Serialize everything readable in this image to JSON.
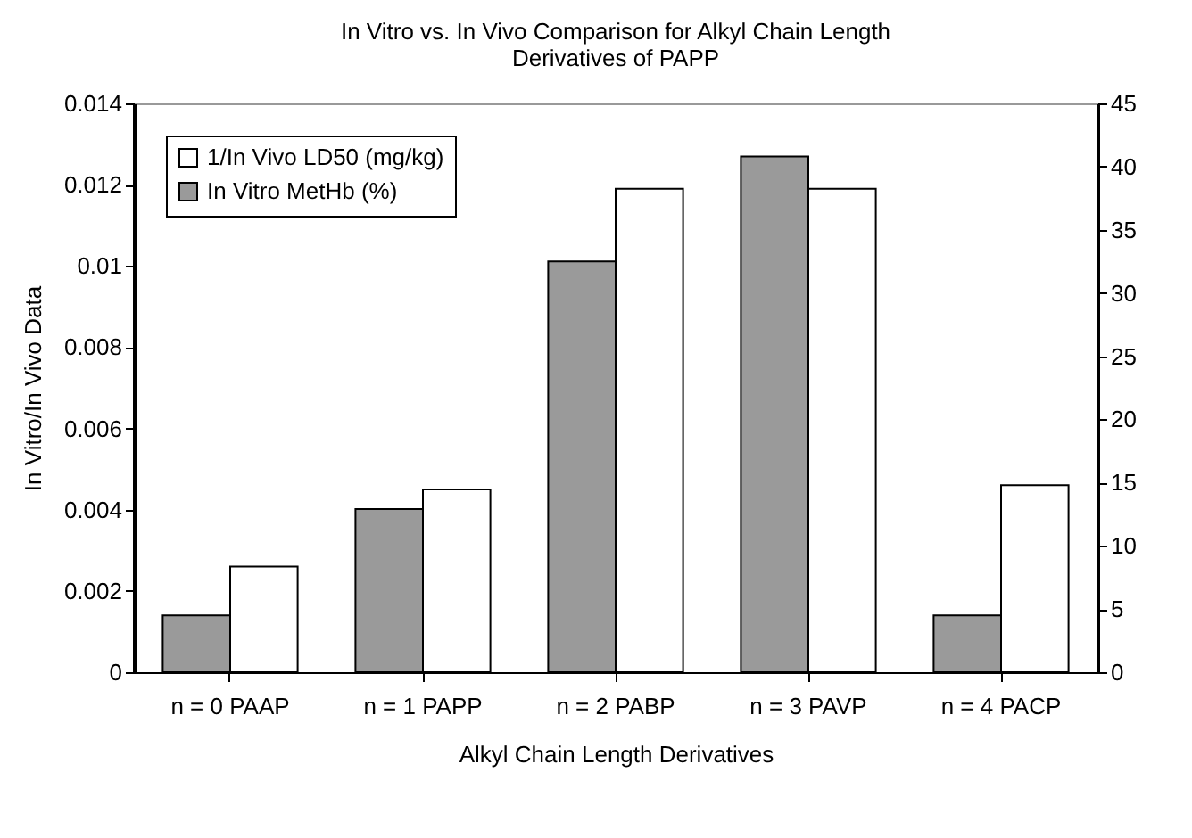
{
  "chart_data": {
    "type": "bar",
    "title": "In Vitro vs. In Vivo Comparison for Alkyl Chain Length Derivatives of PAPP",
    "xlabel": "Alkyl Chain Length Derivatives",
    "ylabel": "In Vitro/In Vivo Data",
    "categories": [
      "n = 0 PAAP",
      "n = 1 PAPP",
      "n = 2 PABP",
      "n = 3 PAVP",
      "n = 4 PACP"
    ],
    "series": [
      {
        "name": "1/In Vivo LD50 (mg/kg)",
        "color": "#ffffff",
        "values": [
          0.0026,
          0.0045,
          0.0119,
          0.0119,
          0.0046
        ]
      },
      {
        "name": "In Vitro MetHb (%)",
        "color": "#9a9a9a",
        "axis": "y2",
        "values": [
          4.5,
          12.9,
          32.5,
          40.8,
          4.5
        ]
      }
    ],
    "ylim": [
      0,
      0.014
    ],
    "yticks": [
      0,
      0.002,
      0.004,
      0.006,
      0.008,
      0.01,
      0.012,
      0.014
    ],
    "y2lim": [
      0,
      45
    ],
    "y2ticks": [
      0,
      5,
      10,
      15,
      20,
      25,
      30,
      35,
      40,
      45
    ],
    "grid": false,
    "legend": "top left"
  }
}
